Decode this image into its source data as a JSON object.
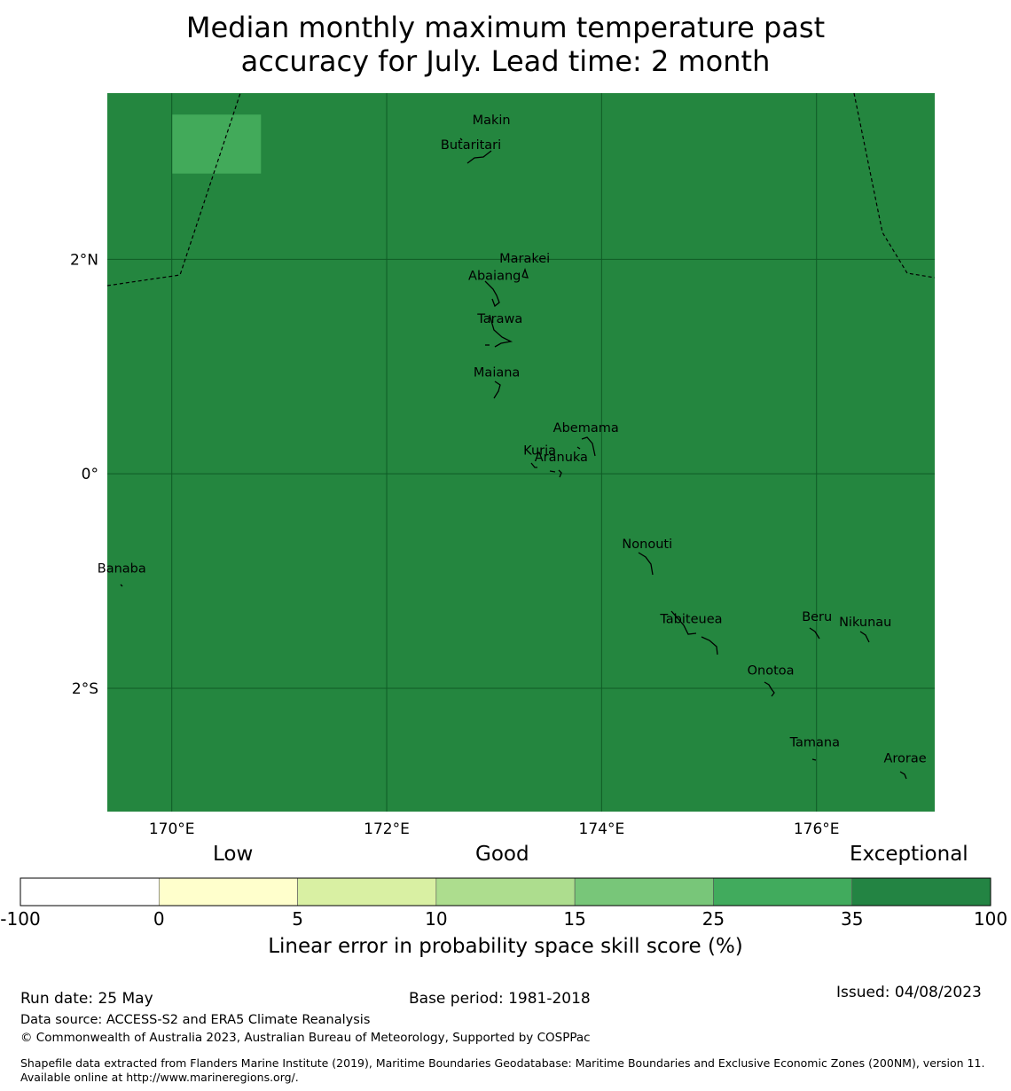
{
  "title": {
    "line1": "Median monthly maximum temperature past",
    "line2": "accuracy for July. Lead time: 2 month"
  },
  "map": {
    "lon_range": [
      169.4,
      177.1
    ],
    "lat_range": [
      -3.15,
      3.55
    ],
    "background_color": "#24863f",
    "highlight_color": "#42aa5a",
    "highlight_cell": {
      "lon": [
        170.0,
        170.83
      ],
      "lat": [
        2.8,
        3.35
      ]
    },
    "lat_ticks": [
      {
        "lat": 2,
        "label": "2°N"
      },
      {
        "lat": 0,
        "label": "0°"
      },
      {
        "lat": -2,
        "label": "2°S"
      }
    ],
    "lon_ticks": [
      {
        "lon": 170,
        "label": "170°E"
      },
      {
        "lon": 172,
        "label": "172°E"
      },
      {
        "lon": 174,
        "label": "174°E"
      },
      {
        "lon": 176,
        "label": "176°E"
      }
    ],
    "islands": [
      {
        "name": "Makin",
        "lon": 172.97,
        "lat": 3.3
      },
      {
        "name": "Butaritari",
        "lon": 172.78,
        "lat": 3.07
      },
      {
        "name": "Marakei",
        "lon": 173.28,
        "lat": 2.01
      },
      {
        "name": "Abaiang",
        "lon": 173.0,
        "lat": 1.85
      },
      {
        "name": "Tarawa",
        "lon": 173.05,
        "lat": 1.45
      },
      {
        "name": "Maiana",
        "lon": 173.02,
        "lat": 0.95
      },
      {
        "name": "Abemama",
        "lon": 173.85,
        "lat": 0.43
      },
      {
        "name": "Kuria",
        "lon": 173.42,
        "lat": 0.22
      },
      {
        "name": "Aranuka",
        "lon": 173.62,
        "lat": 0.16
      },
      {
        "name": "Nonouti",
        "lon": 174.42,
        "lat": -0.65
      },
      {
        "name": "Banaba",
        "lon": 169.53,
        "lat": -0.88
      },
      {
        "name": "Tabiteuea",
        "lon": 174.83,
        "lat": -1.35
      },
      {
        "name": "Beru",
        "lon": 176.0,
        "lat": -1.33
      },
      {
        "name": "Nikunau",
        "lon": 176.45,
        "lat": -1.38
      },
      {
        "name": "Onotoa",
        "lon": 175.57,
        "lat": -1.83
      },
      {
        "name": "Tamana",
        "lon": 175.98,
        "lat": -2.5
      },
      {
        "name": "Arorae",
        "lon": 176.82,
        "lat": -2.65
      }
    ]
  },
  "colorbar": {
    "categories": [
      "Low",
      "Good",
      "Exceptional"
    ],
    "bins": [
      {
        "color": "#ffffff"
      },
      {
        "color": "#ffffcc"
      },
      {
        "color": "#d9f0a3"
      },
      {
        "color": "#addd8e"
      },
      {
        "color": "#78c679"
      },
      {
        "color": "#41ab5d"
      },
      {
        "color": "#238443"
      }
    ],
    "ticks": [
      "-100",
      "0",
      "5",
      "10",
      "15",
      "25",
      "35",
      "100"
    ],
    "label": "Linear error in probability space skill score (%)"
  },
  "footer": {
    "run_date": "Run date: 25 May",
    "base_period": "Base period: 1981-2018",
    "issued": "Issued: 04/08/2023",
    "data_source": "Data source: ACCESS-S2 and ERA5 Climate Reanalysis",
    "copyright": "© Commonwealth of Australia 2023, Australian Bureau of Meteorology, Supported by COSPPac",
    "shapefile": "Shapefile data extracted from Flanders Marine Institute (2019), Maritime Boundaries Geodatabase: Maritime Boundaries and Exclusive Economic Zones (200NM), version 11. Available online at http://www.marineregions.org/."
  }
}
